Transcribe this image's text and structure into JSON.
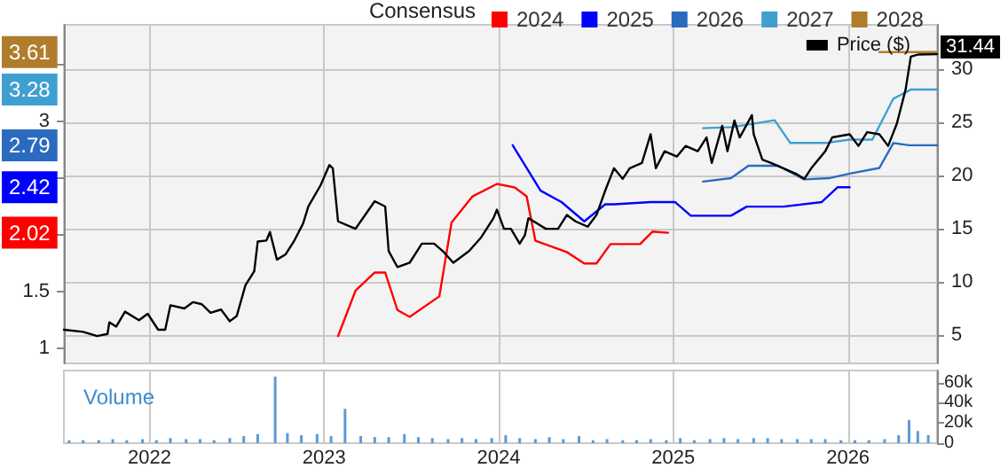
{
  "chart_data": [
    {
      "type": "line",
      "legend_title": "Consensus",
      "legend": "top right",
      "grid": true,
      "tick_labels": "y",
      "xlim": [
        2021.51,
        2026.51
      ],
      "xticks": [
        2022,
        2023,
        2024,
        2025,
        2026
      ],
      "ylim": [
        0.87,
        3.85
      ],
      "yticks": [
        1,
        1.5,
        {
          "value": 2,
          "label": null
        },
        {
          "value": 2.5,
          "label": null
        },
        3,
        {
          "value": 3.5,
          "label": null
        }
      ],
      "y2lim": [
        2.33,
        34.2
      ],
      "y2ticks": [
        5,
        10,
        15,
        20,
        25,
        30
      ],
      "annotations": [
        "2.02",
        "2.42",
        "2.79",
        "3.28",
        "3.61"
      ],
      "series": [
        {
          "name": "2024",
          "color": "#ff0000",
          "x": [
            2023.08,
            2023.18,
            2023.29,
            2023.35,
            2023.42,
            2023.49,
            2023.66,
            2023.73,
            2023.85,
            2023.99,
            2024.09,
            2024.16,
            2024.21,
            2024.39,
            2024.49,
            2024.56,
            2024.64,
            2024.81,
            2024.88,
            2024.97
          ],
          "values": [
            1.11,
            1.51,
            1.67,
            1.67,
            1.34,
            1.28,
            1.46,
            2.11,
            2.34,
            2.45,
            2.42,
            2.34,
            1.95,
            1.85,
            1.75,
            1.75,
            1.92,
            1.92,
            2.03,
            2.02
          ]
        },
        {
          "name": "2025",
          "color": "#0000ff",
          "x": [
            2024.08,
            2024.24,
            2024.36,
            2024.49,
            2024.61,
            2024.66,
            2024.87,
            2025.01,
            2025.1,
            2025.33,
            2025.42,
            2025.63,
            2025.85,
            2025.94,
            2026.01
          ],
          "values": [
            2.79,
            2.39,
            2.29,
            2.12,
            2.27,
            2.27,
            2.29,
            2.29,
            2.17,
            2.17,
            2.25,
            2.25,
            2.29,
            2.42,
            2.42
          ]
        },
        {
          "name": "2026",
          "color": "#2a6bbf",
          "x": [
            2025.17,
            2025.33,
            2025.43,
            2025.6,
            2025.75,
            2025.89,
            2026.01,
            2026.18,
            2026.26,
            2026.35,
            2026.51
          ],
          "values": [
            2.47,
            2.5,
            2.61,
            2.61,
            2.49,
            2.5,
            2.54,
            2.59,
            2.81,
            2.79,
            2.79
          ]
        },
        {
          "name": "2027",
          "color": "#3fa0d0",
          "x": [
            2025.17,
            2025.34,
            2025.58,
            2025.67,
            2025.87,
            2026.01,
            2026.14,
            2026.26,
            2026.36,
            2026.51
          ],
          "values": [
            2.94,
            2.95,
            3.01,
            2.81,
            2.81,
            2.84,
            2.84,
            3.2,
            3.28,
            3.28
          ]
        },
        {
          "name": "2028",
          "color": "#b07d2c",
          "x": [
            2026.18,
            2026.51
          ],
          "values": [
            3.61,
            3.61
          ]
        },
        {
          "name": "Price ($)",
          "color": "#000000",
          "axis": "y2",
          "x": [
            2021.51,
            2021.62,
            2021.7,
            2021.76,
            2021.77,
            2021.81,
            2021.86,
            2021.94,
            2021.99,
            2022.05,
            2022.09,
            2022.12,
            2022.2,
            2022.25,
            2022.3,
            2022.35,
            2022.41,
            2022.46,
            2022.5,
            2022.55,
            2022.6,
            2022.62,
            2022.67,
            2022.69,
            2022.73,
            2022.78,
            2022.83,
            2022.88,
            2022.91,
            2022.98,
            2023.03,
            2023.05,
            2023.08,
            2023.18,
            2023.29,
            2023.35,
            2023.37,
            2023.42,
            2023.49,
            2023.56,
            2023.63,
            2023.68,
            2023.74,
            2023.83,
            2023.9,
            2023.97,
            2023.99,
            2024.03,
            2024.07,
            2024.12,
            2024.15,
            2024.17,
            2024.27,
            2024.34,
            2024.39,
            2024.44,
            2024.51,
            2024.56,
            2024.61,
            2024.66,
            2024.71,
            2024.75,
            2024.82,
            2024.87,
            2024.9,
            2024.95,
            2025.02,
            2025.07,
            2025.14,
            2025.19,
            2025.22,
            2025.28,
            2025.31,
            2025.35,
            2025.38,
            2025.45,
            2025.46,
            2025.51,
            2025.56,
            2025.63,
            2025.7,
            2025.75,
            2025.79,
            2025.87,
            2025.91,
            2026.01,
            2026.06,
            2026.11,
            2026.18,
            2026.23,
            2026.28,
            2026.33,
            2026.36,
            2026.4,
            2026.51
          ],
          "values": [
            5.5,
            5.3,
            4.9,
            5.1,
            6.2,
            5.8,
            7.2,
            6.4,
            7.0,
            5.5,
            5.5,
            7.8,
            7.5,
            8.1,
            7.9,
            7.1,
            7.4,
            6.3,
            6.8,
            9.7,
            11.0,
            13.8,
            13.9,
            14.7,
            12.1,
            12.6,
            13.9,
            15.5,
            17.1,
            19.1,
            21.0,
            20.7,
            15.7,
            15.0,
            17.6,
            17.1,
            12.9,
            11.4,
            11.8,
            13.6,
            13.6,
            12.9,
            11.8,
            12.9,
            14.2,
            16.0,
            16.8,
            15.0,
            15.0,
            13.6,
            14.4,
            16.0,
            15.0,
            15.0,
            16.3,
            15.7,
            15.2,
            16.3,
            18.6,
            20.7,
            19.7,
            20.7,
            21.2,
            23.9,
            20.7,
            22.3,
            21.8,
            22.8,
            22.3,
            23.6,
            21.2,
            24.7,
            22.3,
            25.2,
            23.6,
            25.7,
            23.9,
            21.5,
            21.2,
            20.7,
            20.2,
            19.7,
            20.7,
            22.3,
            23.6,
            23.9,
            22.8,
            24.1,
            23.9,
            22.8,
            24.9,
            28.1,
            31.2,
            31.4,
            31.44
          ],
          "value_labels": [
            null,
            null,
            null,
            null,
            null,
            null,
            null,
            null,
            null,
            null,
            null,
            null,
            null,
            null,
            null,
            null,
            null,
            null,
            null,
            null,
            null,
            null,
            null,
            null,
            null,
            null,
            null,
            null,
            null,
            null,
            null,
            null,
            null,
            null,
            null,
            null,
            null,
            null,
            null,
            null,
            null,
            null,
            null,
            null,
            null,
            null,
            null,
            null,
            null,
            null,
            null,
            null,
            null,
            null,
            null,
            null,
            null,
            null,
            null,
            null,
            null,
            null,
            null,
            null,
            null,
            null,
            null,
            null,
            null,
            null,
            null,
            null,
            null,
            null,
            null,
            null,
            null,
            null,
            null,
            null,
            null,
            null,
            null,
            null,
            null,
            null,
            null,
            null,
            null,
            null,
            null,
            null,
            null,
            null,
            "31.44"
          ]
        }
      ]
    },
    {
      "type": "bar",
      "title": "Volume",
      "color": "#5b9bd5",
      "grid": "x",
      "xlim": [
        2021.51,
        2026.51
      ],
      "xticks": [
        2022,
        2023,
        2024,
        2025,
        2026
      ],
      "ylim": [
        0,
        72000
      ],
      "yticks": [
        {
          "value": 0,
          "label": "0"
        },
        {
          "value": 20000,
          "label": "20k"
        },
        {
          "value": 40000,
          "label": "40k"
        },
        {
          "value": 60000,
          "label": "60k"
        }
      ],
      "x": [
        2021.54,
        2021.62,
        2021.71,
        2021.79,
        2021.87,
        2021.96,
        2022.04,
        2022.12,
        2022.21,
        2022.29,
        2022.37,
        2022.46,
        2022.54,
        2022.62,
        2022.72,
        2022.79,
        2022.87,
        2022.96,
        2023.04,
        2023.12,
        2023.21,
        2023.29,
        2023.37,
        2023.46,
        2023.54,
        2023.62,
        2023.71,
        2023.79,
        2023.87,
        2023.96,
        2024.04,
        2024.12,
        2024.21,
        2024.29,
        2024.37,
        2024.46,
        2024.54,
        2024.62,
        2024.71,
        2024.79,
        2024.87,
        2024.96,
        2025.04,
        2025.12,
        2025.21,
        2025.29,
        2025.37,
        2025.46,
        2025.54,
        2025.62,
        2025.71,
        2025.79,
        2025.87,
        2025.96,
        2026.04,
        2026.12,
        2026.21,
        2026.29,
        2026.35,
        2026.4,
        2026.46
      ],
      "values": [
        3000,
        3000,
        3000,
        4000,
        3000,
        4000,
        3000,
        5000,
        4000,
        4000,
        3000,
        5000,
        7000,
        9000,
        66000,
        10000,
        8000,
        9000,
        7000,
        34000,
        7000,
        6000,
        6000,
        9000,
        6000,
        5000,
        4000,
        5000,
        4000,
        5000,
        8000,
        5000,
        4000,
        6000,
        4000,
        7000,
        3000,
        4000,
        3000,
        3000,
        4000,
        3000,
        5000,
        3000,
        4000,
        5000,
        4000,
        5000,
        5000,
        4000,
        4000,
        4000,
        4000,
        3000,
        3000,
        3000,
        4000,
        8000,
        23000,
        12000,
        8000
      ]
    }
  ]
}
